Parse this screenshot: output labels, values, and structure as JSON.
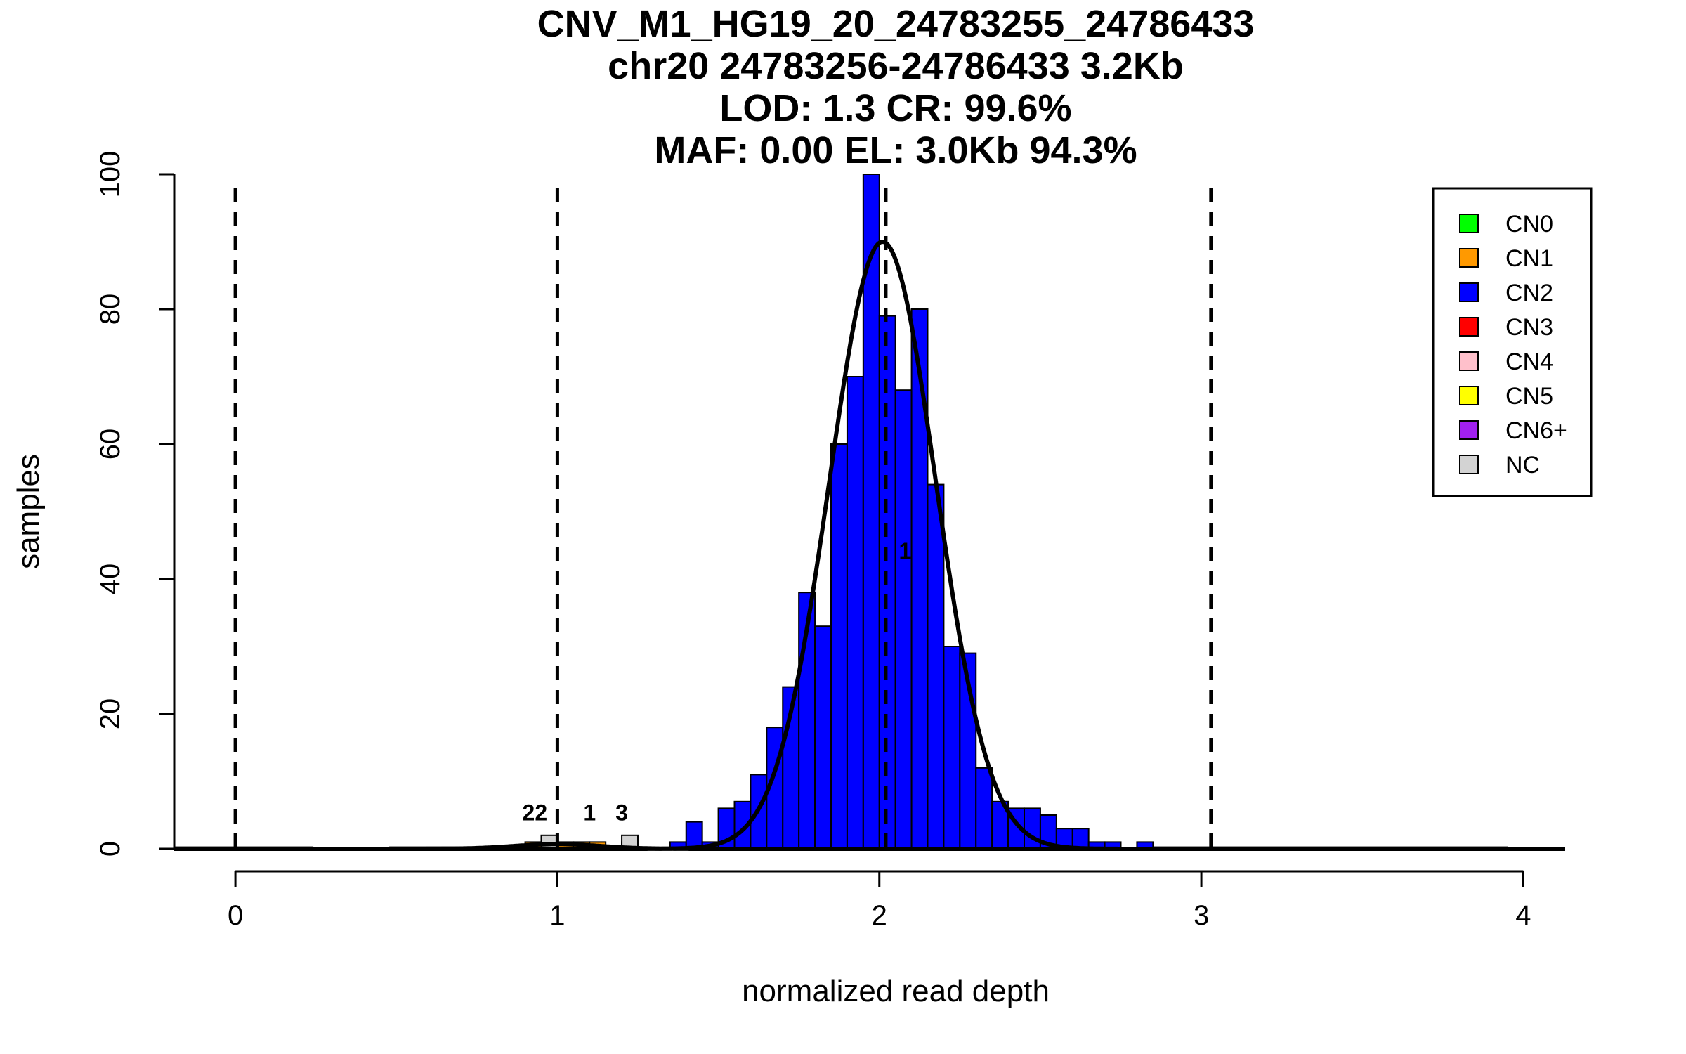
{
  "chart_data": {
    "type": "bar",
    "title_lines": [
      "CNV_M1_HG19_20_24783255_24786433",
      "chr20 24783256-24786433 3.2Kb",
      "LOD: 1.3 CR: 99.6%",
      "MAF: 0.00 EL: 3.0Kb 94.3%"
    ],
    "xlabel": "normalized read depth",
    "ylabel": "samples",
    "xlim": [
      -0.19,
      4.13
    ],
    "ylim": [
      0,
      100
    ],
    "x_ticks": [
      0,
      1,
      2,
      3,
      4
    ],
    "y_ticks": [
      0,
      20,
      40,
      60,
      80,
      100
    ],
    "grid": false,
    "legend_position": "top-right",
    "bin_width": 0.05,
    "series": [
      {
        "name": "CN2",
        "color": "#0000ff",
        "bin_starts": [
          1.3,
          1.35,
          1.4,
          1.45,
          1.5,
          1.55,
          1.6,
          1.65,
          1.7,
          1.75,
          1.8,
          1.85,
          1.9,
          1.95,
          2.0,
          2.05,
          2.1,
          2.15,
          2.2,
          2.25,
          2.3,
          2.35,
          2.4,
          2.45,
          2.5,
          2.55,
          2.6,
          2.65,
          2.7,
          2.75,
          2.8
        ],
        "values": [
          0,
          1,
          4,
          1,
          6,
          7,
          11,
          18,
          24,
          38,
          33,
          60,
          70,
          100,
          79,
          68,
          80,
          54,
          30,
          29,
          12,
          7,
          6,
          6,
          5,
          3,
          3,
          1,
          1,
          0,
          1
        ]
      },
      {
        "name": "CN1",
        "color": "#ff9900",
        "bin_starts": [
          0.9,
          0.95,
          1.0,
          1.05,
          1.1,
          1.15,
          1.2
        ],
        "values": [
          1,
          1,
          1,
          1,
          1,
          0,
          1
        ]
      },
      {
        "name": "NC",
        "color": "#d3d3d3",
        "bin_starts": [
          0.95,
          1.2
        ],
        "values": [
          2,
          2
        ]
      }
    ],
    "fit_curve": {
      "type": "gaussian",
      "mean": 2.01,
      "sd": 0.165,
      "peak": 90
    },
    "low_curve": {
      "type": "gaussian",
      "mean": 1.0,
      "sd": 0.13,
      "peak": 0.7
    },
    "cn_boundaries": [
      0,
      1,
      2.02,
      3.03
    ],
    "annotations": [
      {
        "text": "22",
        "x": 0.93,
        "y": 4.2
      },
      {
        "text": "1",
        "x": 1.1,
        "y": 4.2
      },
      {
        "text": "3",
        "x": 1.2,
        "y": 4.2
      },
      {
        "text": "1",
        "x": 2.08,
        "y": 43
      }
    ],
    "legend": [
      {
        "label": "CN0",
        "color": "#00ff00"
      },
      {
        "label": "CN1",
        "color": "#ff9900"
      },
      {
        "label": "CN2",
        "color": "#0000ff"
      },
      {
        "label": "CN3",
        "color": "#ff0000"
      },
      {
        "label": "CN4",
        "color": "#ffc0cb"
      },
      {
        "label": "CN5",
        "color": "#ffff00"
      },
      {
        "label": "CN6+",
        "color": "#a020f0"
      },
      {
        "label": "NC",
        "color": "#d3d3d3"
      }
    ]
  }
}
